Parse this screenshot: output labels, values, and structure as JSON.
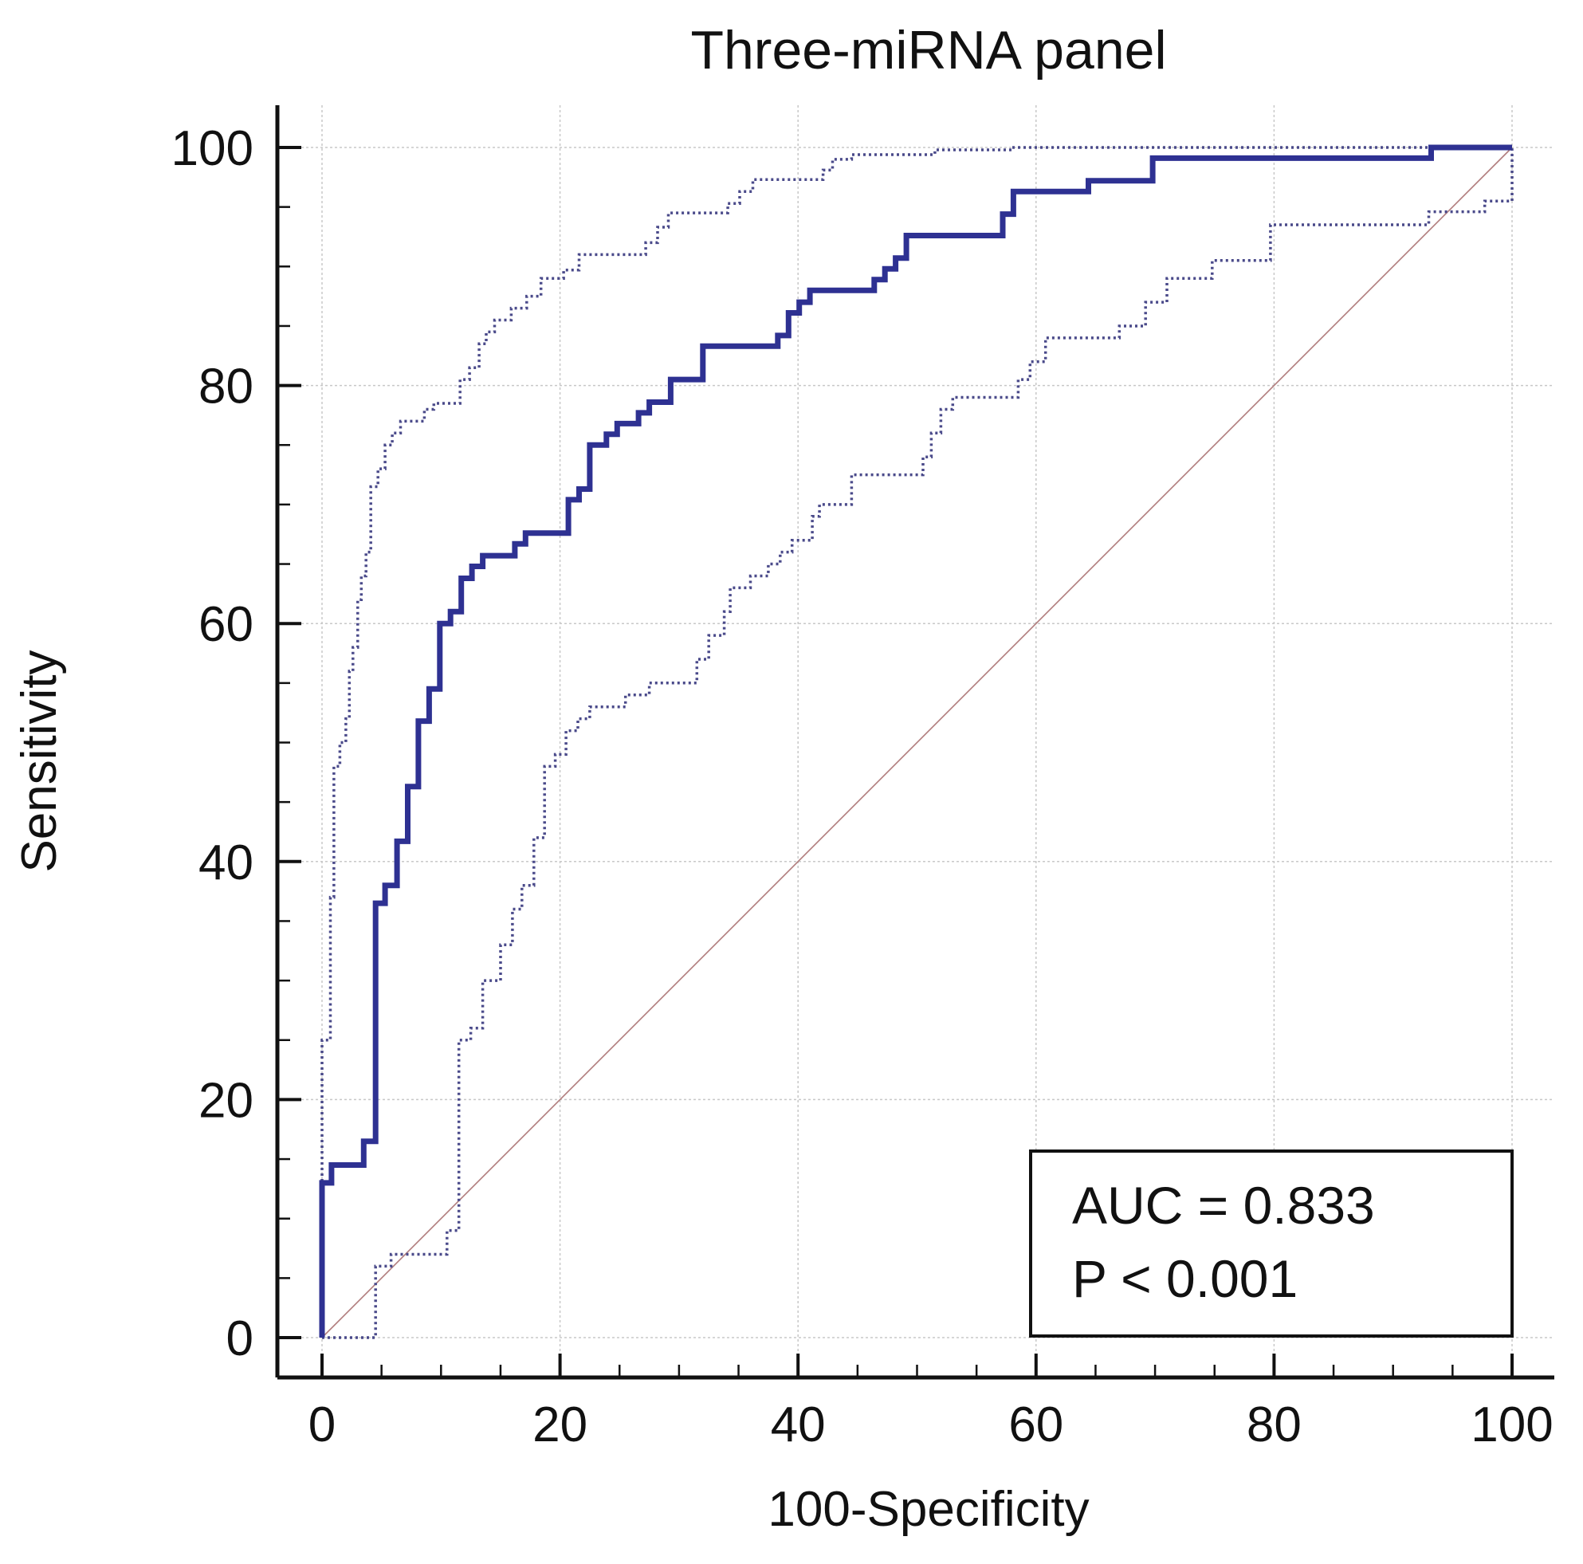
{
  "chart_data": {
    "type": "line",
    "title": "Three-miRNA panel",
    "xlabel": "100-Specificity",
    "ylabel": "Sensitivity",
    "xlim": [
      0,
      100
    ],
    "ylim": [
      0,
      100
    ],
    "x_ticks": [
      "0",
      "20",
      "40",
      "60",
      "80",
      "100"
    ],
    "y_ticks": [
      "0",
      "20",
      "40",
      "60",
      "80",
      "100"
    ],
    "grid": true,
    "annotation": {
      "auc_text": "AUC = 0.833",
      "p_text": "P < 0.001",
      "placement": "bottom-right"
    },
    "colors": {
      "roc": "#2e3192",
      "ci": "#4a4a8a",
      "reference": "#b07c7c",
      "grid": "#c8c8c8",
      "axis": "#111111"
    },
    "series": [
      {
        "role": "roc",
        "style": "solid",
        "points": [
          [
            0,
            0
          ],
          [
            0,
            13
          ],
          [
            0.8,
            13
          ],
          [
            0.8,
            14.5
          ],
          [
            3.5,
            14.5
          ],
          [
            3.5,
            16.5
          ],
          [
            4.5,
            16.5
          ],
          [
            4.5,
            36.5
          ],
          [
            5.3,
            36.5
          ],
          [
            5.3,
            38
          ],
          [
            6.3,
            38
          ],
          [
            6.3,
            41.7
          ],
          [
            7.2,
            41.7
          ],
          [
            7.2,
            46.3
          ],
          [
            8.1,
            46.3
          ],
          [
            8.1,
            51.8
          ],
          [
            9,
            51.8
          ],
          [
            9,
            54.5
          ],
          [
            9.9,
            54.5
          ],
          [
            9.9,
            60
          ],
          [
            10.8,
            60
          ],
          [
            10.8,
            61
          ],
          [
            11.7,
            61
          ],
          [
            11.7,
            63.8
          ],
          [
            12.6,
            63.8
          ],
          [
            12.6,
            64.8
          ],
          [
            13.5,
            64.8
          ],
          [
            13.5,
            65.7
          ],
          [
            16.2,
            65.7
          ],
          [
            16.2,
            66.7
          ],
          [
            17.1,
            66.7
          ],
          [
            17.1,
            67.6
          ],
          [
            20.7,
            67.6
          ],
          [
            20.7,
            70.4
          ],
          [
            21.6,
            70.4
          ],
          [
            21.6,
            71.3
          ],
          [
            22.5,
            71.3
          ],
          [
            22.5,
            75
          ],
          [
            23.9,
            75
          ],
          [
            23.9,
            75.9
          ],
          [
            24.8,
            75.9
          ],
          [
            24.8,
            76.8
          ],
          [
            26.6,
            76.8
          ],
          [
            26.6,
            77.7
          ],
          [
            27.5,
            77.7
          ],
          [
            27.5,
            78.6
          ],
          [
            29.3,
            78.6
          ],
          [
            29.3,
            80.5
          ],
          [
            32,
            80.5
          ],
          [
            32,
            83.3
          ],
          [
            38.3,
            83.3
          ],
          [
            38.3,
            84.2
          ],
          [
            39.2,
            84.2
          ],
          [
            39.2,
            86.1
          ],
          [
            40.1,
            86.1
          ],
          [
            40.1,
            87
          ],
          [
            41,
            87
          ],
          [
            41,
            88
          ],
          [
            46.4,
            88
          ],
          [
            46.4,
            88.9
          ],
          [
            47.3,
            88.9
          ],
          [
            47.3,
            89.8
          ],
          [
            48.2,
            89.8
          ],
          [
            48.2,
            90.7
          ],
          [
            49.1,
            90.7
          ],
          [
            49.1,
            92.6
          ],
          [
            57.2,
            92.6
          ],
          [
            57.2,
            94.4
          ],
          [
            58.1,
            94.4
          ],
          [
            58.1,
            96.3
          ],
          [
            64.4,
            96.3
          ],
          [
            64.4,
            97.2
          ],
          [
            69.8,
            97.2
          ],
          [
            69.8,
            99.1
          ],
          [
            93.2,
            99.1
          ],
          [
            93.2,
            100
          ],
          [
            100,
            100
          ]
        ]
      },
      {
        "role": "ci-upper",
        "style": "dotted",
        "points": [
          [
            0,
            0
          ],
          [
            0,
            25
          ],
          [
            0.7,
            25
          ],
          [
            0.7,
            37
          ],
          [
            1,
            37
          ],
          [
            1,
            48
          ],
          [
            1.5,
            48
          ],
          [
            1.5,
            50
          ],
          [
            2,
            50
          ],
          [
            2,
            52
          ],
          [
            2.3,
            52
          ],
          [
            2.3,
            56
          ],
          [
            2.6,
            56
          ],
          [
            2.6,
            58
          ],
          [
            3,
            58
          ],
          [
            3,
            62
          ],
          [
            3.3,
            62
          ],
          [
            3.3,
            64
          ],
          [
            3.7,
            64
          ],
          [
            3.7,
            66
          ],
          [
            4.1,
            66
          ],
          [
            4.1,
            71.5
          ],
          [
            4.7,
            71.5
          ],
          [
            4.7,
            73
          ],
          [
            5.3,
            73
          ],
          [
            5.3,
            75
          ],
          [
            5.9,
            75
          ],
          [
            5.9,
            76
          ],
          [
            6.6,
            76
          ],
          [
            6.6,
            77
          ],
          [
            8.6,
            77
          ],
          [
            8.6,
            78
          ],
          [
            9.4,
            78
          ],
          [
            9.4,
            78.5
          ],
          [
            11.6,
            78.5
          ],
          [
            11.6,
            80.5
          ],
          [
            12.4,
            80.5
          ],
          [
            12.4,
            81.5
          ],
          [
            13.2,
            81.5
          ],
          [
            13.2,
            83.5
          ],
          [
            13.8,
            83.5
          ],
          [
            13.8,
            84.5
          ],
          [
            14.5,
            84.5
          ],
          [
            14.5,
            85.5
          ],
          [
            15.9,
            85.5
          ],
          [
            15.9,
            86.5
          ],
          [
            17.2,
            86.5
          ],
          [
            17.2,
            87.5
          ],
          [
            18.4,
            87.5
          ],
          [
            18.4,
            89
          ],
          [
            20.3,
            89
          ],
          [
            20.3,
            89.7
          ],
          [
            21.6,
            89.7
          ],
          [
            21.6,
            91
          ],
          [
            27.2,
            91
          ],
          [
            27.2,
            92
          ],
          [
            28.2,
            92
          ],
          [
            28.2,
            93.3
          ],
          [
            29.1,
            93.3
          ],
          [
            29.1,
            94.5
          ],
          [
            34.1,
            94.5
          ],
          [
            34.1,
            95.3
          ],
          [
            35.1,
            95.3
          ],
          [
            35.1,
            96.3
          ],
          [
            36.2,
            96.3
          ],
          [
            36.2,
            97.3
          ],
          [
            42.1,
            97.3
          ],
          [
            42.1,
            98.1
          ],
          [
            42.9,
            98.1
          ],
          [
            42.9,
            99
          ],
          [
            44.5,
            99
          ],
          [
            44.5,
            99.4
          ],
          [
            51.5,
            99.4
          ],
          [
            51.5,
            99.8
          ],
          [
            58,
            99.8
          ],
          [
            58,
            100
          ],
          [
            100,
            100
          ]
        ]
      },
      {
        "role": "ci-lower",
        "style": "dotted",
        "points": [
          [
            0,
            0
          ],
          [
            4.5,
            0
          ],
          [
            4.5,
            6
          ],
          [
            5.8,
            6
          ],
          [
            5.8,
            7
          ],
          [
            10.5,
            7
          ],
          [
            10.5,
            9
          ],
          [
            11.5,
            9
          ],
          [
            11.5,
            25
          ],
          [
            12.5,
            25
          ],
          [
            12.5,
            26
          ],
          [
            13.5,
            26
          ],
          [
            13.5,
            30
          ],
          [
            15,
            30
          ],
          [
            15,
            33
          ],
          [
            16,
            33
          ],
          [
            16,
            36
          ],
          [
            16.8,
            36
          ],
          [
            16.8,
            38
          ],
          [
            17.8,
            38
          ],
          [
            17.8,
            42
          ],
          [
            18.7,
            42
          ],
          [
            18.7,
            48
          ],
          [
            19.6,
            48
          ],
          [
            19.6,
            49
          ],
          [
            20.5,
            49
          ],
          [
            20.5,
            51
          ],
          [
            21.5,
            51
          ],
          [
            21.5,
            52
          ],
          [
            22.5,
            52
          ],
          [
            22.5,
            53
          ],
          [
            25.5,
            53
          ],
          [
            25.5,
            54
          ],
          [
            27.5,
            54
          ],
          [
            27.5,
            55
          ],
          [
            31.5,
            55
          ],
          [
            31.5,
            57
          ],
          [
            32.5,
            57
          ],
          [
            32.5,
            59
          ],
          [
            33.8,
            59
          ],
          [
            33.8,
            61
          ],
          [
            34.3,
            61
          ],
          [
            34.3,
            63
          ],
          [
            36,
            63
          ],
          [
            36,
            64
          ],
          [
            37.5,
            64
          ],
          [
            37.5,
            65
          ],
          [
            38.5,
            65
          ],
          [
            38.5,
            66
          ],
          [
            39.5,
            66
          ],
          [
            39.5,
            67
          ],
          [
            41.2,
            67
          ],
          [
            41.2,
            69
          ],
          [
            41.8,
            69
          ],
          [
            41.8,
            70
          ],
          [
            44.5,
            70
          ],
          [
            44.5,
            72.5
          ],
          [
            50.5,
            72.5
          ],
          [
            50.5,
            74
          ],
          [
            51.2,
            74
          ],
          [
            51.2,
            76
          ],
          [
            52,
            76
          ],
          [
            52,
            78
          ],
          [
            53,
            78
          ],
          [
            53,
            79
          ],
          [
            58.5,
            79
          ],
          [
            58.5,
            80.5
          ],
          [
            59.5,
            80.5
          ],
          [
            59.5,
            82
          ],
          [
            60.8,
            82
          ],
          [
            60.8,
            84
          ],
          [
            67,
            84
          ],
          [
            67,
            85
          ],
          [
            69.2,
            85
          ],
          [
            69.2,
            87
          ],
          [
            71,
            87
          ],
          [
            71,
            89
          ],
          [
            74.8,
            89
          ],
          [
            74.8,
            90.5
          ],
          [
            79.7,
            90.5
          ],
          [
            79.7,
            93.5
          ],
          [
            93,
            93.5
          ],
          [
            93,
            94.6
          ],
          [
            97.7,
            94.6
          ],
          [
            97.7,
            95.5
          ],
          [
            100,
            95.5
          ],
          [
            100,
            100
          ]
        ]
      },
      {
        "role": "reference",
        "style": "thin",
        "points": [
          [
            0,
            0
          ],
          [
            100,
            100
          ]
        ]
      }
    ]
  }
}
